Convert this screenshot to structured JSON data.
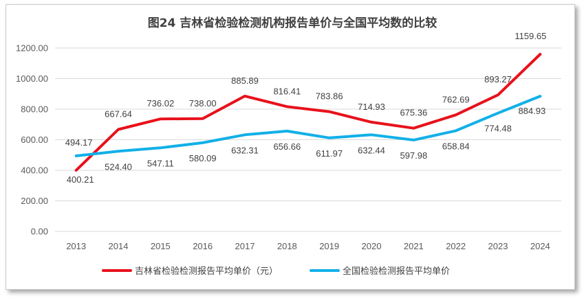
{
  "chart_data": {
    "type": "line",
    "title": "图24  吉林省检验检测机构报告单价与全国平均数的比较",
    "categories": [
      "2013",
      "2014",
      "2015",
      "2016",
      "2017",
      "2018",
      "2019",
      "2020",
      "2021",
      "2022",
      "2023",
      "2024"
    ],
    "ylim": [
      0,
      1200
    ],
    "yticks": [
      "0.00",
      "200.00",
      "400.00",
      "600.00",
      "800.00",
      "1000.00",
      "1200.00"
    ],
    "grid": true,
    "legend_position": "bottom",
    "series": [
      {
        "name": "吉林省检验检测报告平均单价（元）",
        "color": "#e8111b",
        "values": [
          400.21,
          667.64,
          736.02,
          738.0,
          885.89,
          816.41,
          783.86,
          714.93,
          675.36,
          762.69,
          893.27,
          1159.65
        ],
        "labels": [
          "400.21",
          "667.64",
          "736.02",
          "738.00",
          "885.89",
          "816.41",
          "783.86",
          "714.93",
          "675.36",
          "762.69",
          "893.27",
          "1159.65"
        ]
      },
      {
        "name": "全国检验检测报告平均单价",
        "color": "#12b0e8",
        "values": [
          494.17,
          524.4,
          547.11,
          580.09,
          632.31,
          656.66,
          611.97,
          632.44,
          597.98,
          658.84,
          774.48,
          884.93
        ],
        "labels": [
          "494.17",
          "524.40",
          "547.11",
          "580.09",
          "632.31",
          "656.66",
          "611.97",
          "632.44",
          "597.98",
          "658.84",
          "774.48",
          "884.93"
        ]
      }
    ]
  }
}
